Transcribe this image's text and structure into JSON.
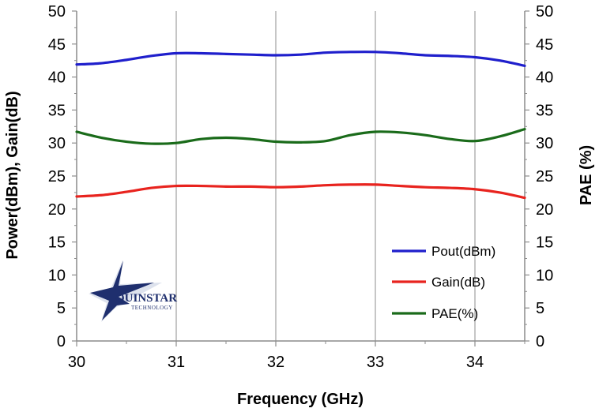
{
  "chart_data": {
    "type": "line",
    "title": "",
    "xlabel": "Frequency (GHz)",
    "ylabel_left": "Power(dBm), Gain(dB)",
    "ylabel_right": "PAE (%)",
    "xlim": [
      30,
      34.5
    ],
    "ylim": [
      0,
      50
    ],
    "ylim_right": [
      0,
      50
    ],
    "x_ticks": [
      30,
      31,
      32,
      33,
      34
    ],
    "x_tick_labels": [
      "30",
      "31",
      "32",
      "33",
      "34"
    ],
    "y_ticks": [
      0,
      5,
      10,
      15,
      20,
      25,
      30,
      35,
      40,
      45,
      50
    ],
    "y_tick_labels": [
      "0",
      "5",
      "10",
      "15",
      "20",
      "25",
      "30",
      "35",
      "40",
      "45",
      "50"
    ],
    "grid": "vertical-major",
    "legend_position": "bottom-right",
    "series": [
      {
        "name": "Pout(dBm)",
        "axis": "left",
        "color": "#1f1fcc",
        "x": [
          30,
          30.25,
          30.5,
          30.75,
          31,
          31.25,
          31.5,
          31.75,
          32,
          32.25,
          32.5,
          32.75,
          33,
          33.25,
          33.5,
          33.75,
          34,
          34.25,
          34.5
        ],
        "y": [
          41.9,
          42.1,
          42.6,
          43.2,
          43.6,
          43.6,
          43.5,
          43.4,
          43.3,
          43.4,
          43.7,
          43.8,
          43.8,
          43.6,
          43.3,
          43.2,
          43.0,
          42.5,
          41.7
        ]
      },
      {
        "name": "Gain(dB)",
        "axis": "left",
        "color": "#e8231e",
        "x": [
          30,
          30.25,
          30.5,
          30.75,
          31,
          31.25,
          31.5,
          31.75,
          32,
          32.25,
          32.5,
          32.75,
          33,
          33.25,
          33.5,
          33.75,
          34,
          34.25,
          34.5
        ],
        "y": [
          21.9,
          22.1,
          22.6,
          23.2,
          23.5,
          23.5,
          23.4,
          23.4,
          23.3,
          23.4,
          23.6,
          23.7,
          23.7,
          23.5,
          23.3,
          23.2,
          23.0,
          22.5,
          21.7
        ]
      },
      {
        "name": "PAE(%)",
        "axis": "right",
        "color": "#1a6b1a",
        "x": [
          30,
          30.25,
          30.5,
          30.75,
          31,
          31.25,
          31.5,
          31.75,
          32,
          32.25,
          32.5,
          32.75,
          33,
          33.25,
          33.5,
          33.75,
          34,
          34.25,
          34.5
        ],
        "y": [
          31.7,
          30.8,
          30.2,
          29.9,
          30.0,
          30.6,
          30.8,
          30.6,
          30.2,
          30.1,
          30.3,
          31.2,
          31.7,
          31.6,
          31.2,
          30.6,
          30.3,
          31.0,
          32.1
        ]
      }
    ]
  },
  "logo": {
    "name": "QUINSTAR",
    "sub": "TECHNOLOGY"
  }
}
